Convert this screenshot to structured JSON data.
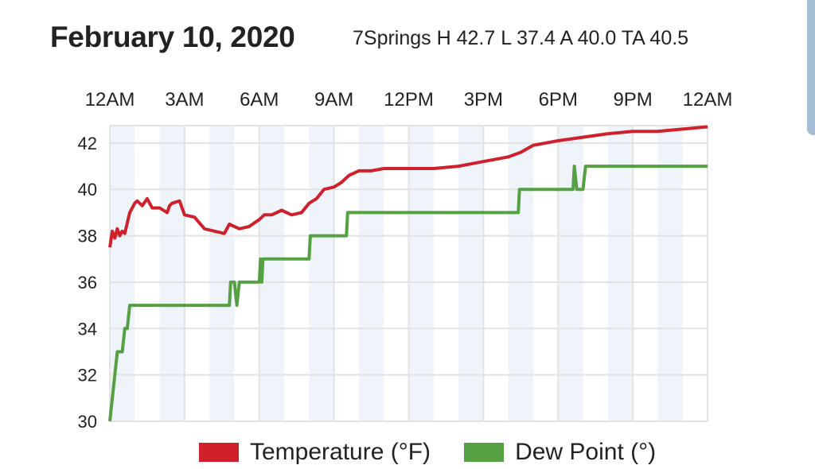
{
  "header": {
    "title": "February 10, 2020",
    "subtitle": "7Springs H 42.7 L 37.4 A 40.0 TA 40.5"
  },
  "chart_data": {
    "type": "line",
    "title": "February 10, 2020",
    "xlabel": "",
    "ylabel": "",
    "x_ticks": [
      "12AM",
      "3AM",
      "6AM",
      "9AM",
      "12PM",
      "3PM",
      "6PM",
      "9PM",
      "12AM"
    ],
    "x_range_hours": [
      0,
      24
    ],
    "y_ticks": [
      30,
      32,
      34,
      36,
      38,
      40,
      42
    ],
    "ylim": [
      30,
      42.75
    ],
    "grid": true,
    "legend_position": "bottom",
    "series": [
      {
        "name": "Temperature (°F)",
        "color": "#d0202b",
        "x": [
          0,
          0.1,
          0.2,
          0.3,
          0.4,
          0.5,
          0.6,
          0.8,
          1.0,
          1.1,
          1.3,
          1.5,
          1.7,
          2.0,
          2.3,
          2.4,
          2.5,
          2.8,
          3.0,
          3.4,
          3.8,
          4.2,
          4.6,
          4.8,
          5.0,
          5.2,
          5.6,
          6.0,
          6.2,
          6.5,
          6.9,
          7.3,
          7.7,
          8.0,
          8.3,
          8.6,
          9.0,
          9.3,
          9.6,
          10,
          10.5,
          11,
          12,
          13,
          14,
          15,
          16,
          16.5,
          17,
          18,
          19,
          20,
          21,
          22,
          23,
          24
        ],
        "y": [
          37.5,
          38.2,
          37.9,
          38.3,
          38.0,
          38.2,
          38.1,
          39.0,
          39.4,
          39.5,
          39.3,
          39.6,
          39.2,
          39.2,
          39.0,
          39.3,
          39.4,
          39.5,
          38.9,
          38.8,
          38.3,
          38.2,
          38.1,
          38.5,
          38.4,
          38.3,
          38.4,
          38.7,
          38.9,
          38.9,
          39.1,
          38.9,
          39.0,
          39.4,
          39.6,
          40.0,
          40.1,
          40.3,
          40.6,
          40.8,
          40.8,
          40.9,
          40.9,
          40.9,
          41.0,
          41.2,
          41.4,
          41.6,
          41.9,
          42.1,
          42.25,
          42.4,
          42.5,
          42.5,
          42.6,
          42.7
        ]
      },
      {
        "name": "Dew Point (°)",
        "color": "#56a044",
        "x": [
          0,
          0.3,
          0.5,
          0.6,
          0.7,
          0.8,
          4.8,
          4.85,
          5.0,
          5.1,
          5.2,
          6.0,
          6.05,
          6.1,
          6.15,
          6.2,
          8.0,
          8.05,
          9.5,
          9.55,
          16.4,
          16.45,
          18.6,
          18.65,
          18.75,
          19.0,
          19.1,
          24
        ],
        "y": [
          30,
          33,
          33,
          34,
          34,
          35,
          35,
          36,
          36,
          35,
          36,
          36,
          37,
          36,
          37,
          37,
          37,
          38,
          38,
          39,
          39,
          40,
          40,
          41,
          40,
          40,
          41,
          41
        ]
      }
    ]
  }
}
